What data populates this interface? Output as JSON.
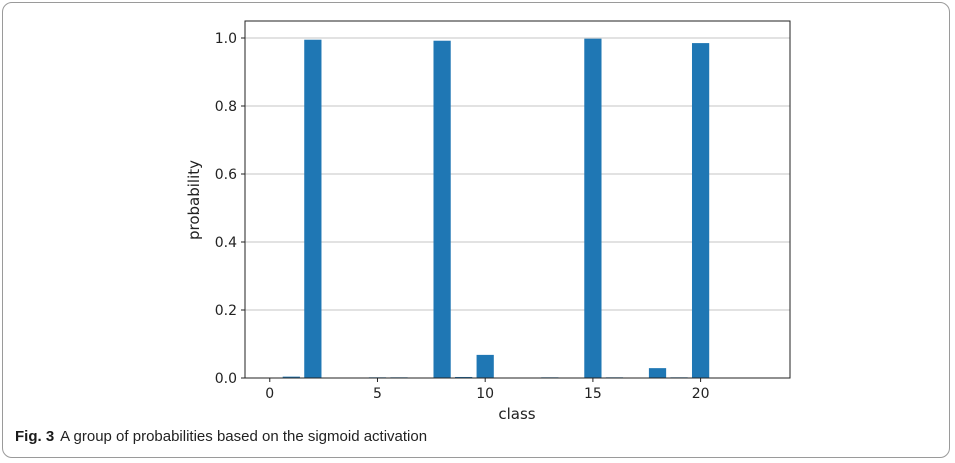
{
  "chart_data": {
    "type": "bar",
    "x": [
      0,
      1,
      2,
      3,
      4,
      5,
      6,
      7,
      8,
      9,
      10,
      11,
      12,
      13,
      14,
      15,
      16,
      17,
      18,
      19,
      20,
      21,
      22,
      23
    ],
    "values": [
      0.0,
      0.004,
      0.995,
      0.0,
      0.0,
      0.002,
      0.002,
      0.0,
      0.992,
      0.003,
      0.068,
      0.0,
      0.0,
      0.002,
      0.001,
      0.998,
      0.002,
      0.0,
      0.029,
      0.002,
      0.985,
      0.0,
      0.0,
      0.0
    ],
    "xlabel": "class",
    "ylabel": "probability",
    "xlim": [
      -1.15,
      24.15
    ],
    "ylim": [
      0.0,
      1.05
    ],
    "xticks": [
      0,
      5,
      10,
      15,
      20
    ],
    "xtick_labels": [
      "0",
      "5",
      "10",
      "15",
      "20"
    ],
    "yticks": [
      0.0,
      0.2,
      0.4,
      0.6,
      0.8,
      1.0
    ],
    "ytick_labels": [
      "0.0",
      "0.2",
      "0.4",
      "0.6",
      "0.8",
      "1.0"
    ],
    "grid": "horizontal",
    "bar_color": "#1f77b4"
  },
  "caption": {
    "label": "Fig. 3",
    "text": "A group of probabilities based on the sigmoid activation"
  }
}
